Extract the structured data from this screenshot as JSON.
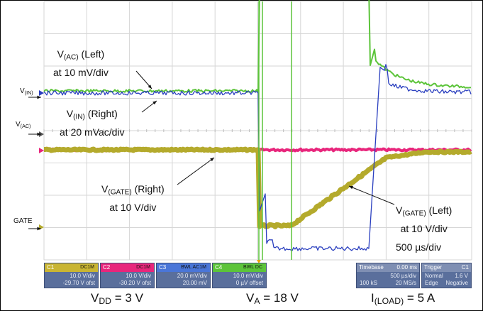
{
  "chart_data": {
    "type": "line",
    "time_per_div": "500 µs/div",
    "annotations": {
      "vac_left": {
        "line1_main": "V",
        "line1_sub": "(AC)",
        "line1_rest": " (Left)",
        "line2": "at 10 mV/div"
      },
      "vin_right": {
        "line1_main": "V",
        "line1_sub": "(IN)",
        "line1_rest": " (Right)",
        "line2": "at 20 mVac/div"
      },
      "vgate_right": {
        "line1_main": "V",
        "line1_sub": "(GATE)",
        "line1_rest": " (Right)",
        "line2": "at 10 V/div"
      },
      "vgate_left": {
        "line1_main": "V",
        "line1_sub": "(GATE)",
        "line1_rest": " (Left)",
        "line2": "at 10 V/div"
      }
    },
    "side_labels": {
      "vin": {
        "main": "V",
        "sub": "(IN)"
      },
      "vac": {
        "main": "V",
        "sub": "(AC)"
      },
      "gate": {
        "main": "GATE"
      }
    },
    "series": [
      {
        "channel": "C1",
        "color": "#b4aa2c"
      },
      {
        "channel": "C2",
        "color": "#e8267c"
      },
      {
        "channel": "C3",
        "color": "#2a3fbf"
      },
      {
        "channel": "C4",
        "color": "#5cc43a"
      }
    ]
  },
  "channels": [
    {
      "id": "C1",
      "color": "#c9b533",
      "tag": "DC1M",
      "v1": "10.0 V/div",
      "v2": "-29.70 V ofst"
    },
    {
      "id": "C2",
      "color": "#e8267c",
      "tag": "DC1M",
      "v1": "10.0 V/div",
      "v2": "-30.20 V ofst"
    },
    {
      "id": "C3",
      "color": "#4a76d8",
      "tag": "BWL AC1M",
      "v1": "20.0 mV/div",
      "v2": "20.00 mV"
    },
    {
      "id": "C4",
      "color": "#5cc43a",
      "tag": "BWL DC",
      "v1": "10.0 mV/div",
      "v2": "0 µV offset"
    }
  ],
  "timebase": {
    "label": "Timebase",
    "value": "0.00 ms",
    "div": "500 µs/div",
    "samples": "100 kS",
    "rate": "20 MS/s"
  },
  "trigger": {
    "label": "Trigger",
    "channel": "C1",
    "mode": "Normal",
    "level": "1.6 V",
    "type": "Edge",
    "slope": "Negative"
  },
  "footer": {
    "vdd": {
      "main": "V",
      "sub": "DD",
      "rest": " = 3 V"
    },
    "va": {
      "main": "V",
      "sub": "A",
      "rest": " = 18 V"
    },
    "iload": {
      "main": "I",
      "sub": "(LOAD)",
      "rest": " = 5 A"
    }
  }
}
